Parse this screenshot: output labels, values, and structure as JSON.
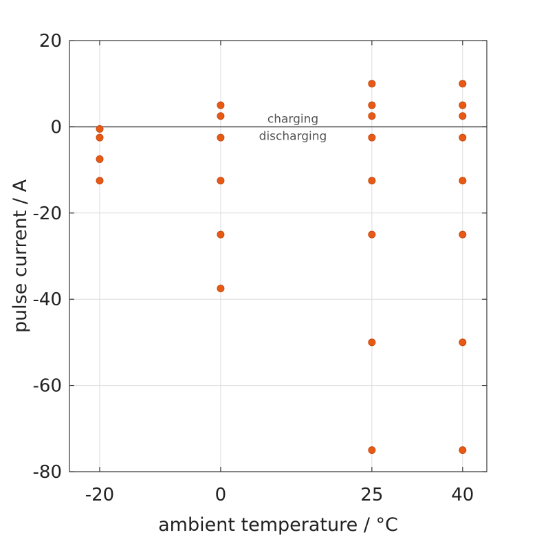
{
  "chart_data": {
    "type": "scatter",
    "title": "",
    "xlabel": "ambient temperature / °C",
    "ylabel": "pulse current / A",
    "x_ticks": [
      -20,
      0,
      25,
      40
    ],
    "x_tick_labels": [
      "-20",
      "0",
      "25",
      "40"
    ],
    "y_ticks": [
      20,
      0,
      -20,
      -40,
      -60,
      -80
    ],
    "y_tick_labels": [
      "20",
      "0",
      "-20",
      "-40",
      "-60",
      "-80"
    ],
    "xlim": [
      -25,
      44
    ],
    "ylim": [
      -80,
      20
    ],
    "grid": true,
    "reference_line_y": 0,
    "annotations": {
      "above_line": "charging",
      "below_line": "discharging"
    },
    "marker_color": "#e85a14",
    "points": [
      {
        "x": -20,
        "y": -0.5
      },
      {
        "x": -20,
        "y": -2.5
      },
      {
        "x": -20,
        "y": -7.5
      },
      {
        "x": -20,
        "y": -12.5
      },
      {
        "x": 0,
        "y": 5
      },
      {
        "x": 0,
        "y": 2.5
      },
      {
        "x": 0,
        "y": -2.5
      },
      {
        "x": 0,
        "y": -12.5
      },
      {
        "x": 0,
        "y": -25
      },
      {
        "x": 0,
        "y": -37.5
      },
      {
        "x": 25,
        "y": 10
      },
      {
        "x": 25,
        "y": 5
      },
      {
        "x": 25,
        "y": 2.5
      },
      {
        "x": 25,
        "y": -2.5
      },
      {
        "x": 25,
        "y": -12.5
      },
      {
        "x": 25,
        "y": -25
      },
      {
        "x": 25,
        "y": -50
      },
      {
        "x": 25,
        "y": -75
      },
      {
        "x": 40,
        "y": 10
      },
      {
        "x": 40,
        "y": 5
      },
      {
        "x": 40,
        "y": 2.5
      },
      {
        "x": 40,
        "y": -2.5
      },
      {
        "x": 40,
        "y": -12.5
      },
      {
        "x": 40,
        "y": -25
      },
      {
        "x": 40,
        "y": -50
      },
      {
        "x": 40,
        "y": -75
      }
    ]
  }
}
